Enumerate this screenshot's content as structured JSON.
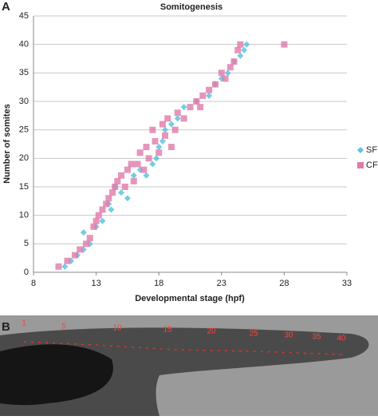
{
  "panel_labels": [
    "A",
    "B"
  ],
  "chart_data": {
    "type": "scatter",
    "title": "Somitogenesis",
    "x_label": "Developmental stage (hpf)",
    "y_label": "Number of somites",
    "xlim": [
      8,
      33
    ],
    "xticks": [
      8,
      13,
      18,
      23,
      28,
      33
    ],
    "ylim": [
      0,
      45
    ],
    "yticks": [
      0,
      5,
      10,
      15,
      20,
      25,
      30,
      35,
      40,
      45
    ],
    "grid": true,
    "legend": "right",
    "series": [
      {
        "name": "SF",
        "color": "#5ec3e0",
        "marker": "diamond",
        "x": [
          10.5,
          11,
          11.5,
          12,
          12,
          12.5,
          13,
          13.5,
          14,
          14.2,
          14.5,
          15,
          15.5,
          16,
          16.5,
          17,
          17.5,
          17.8,
          18,
          18.3,
          18.5,
          19,
          19.5,
          20,
          21,
          22,
          22.5,
          23,
          23.5,
          24,
          24.5,
          24.8,
          25
        ],
        "values": [
          1,
          2,
          3,
          4,
          7,
          5,
          8,
          9,
          12,
          11,
          15,
          14,
          13,
          17,
          18,
          17,
          19,
          20,
          22,
          23,
          25,
          26,
          27,
          29,
          30,
          31,
          33,
          34,
          35,
          37,
          38,
          39,
          40
        ]
      },
      {
        "name": "CF",
        "color": "#e07aa9",
        "marker": "square",
        "x": [
          10,
          10.7,
          11.3,
          11.7,
          12.2,
          12.5,
          12.8,
          13,
          13.2,
          13.5,
          13.8,
          14,
          14.3,
          14.5,
          14.7,
          15,
          15.3,
          15.5,
          15.8,
          16,
          16.3,
          16.5,
          16.8,
          17,
          17.2,
          17.5,
          17.7,
          18,
          18.3,
          18.5,
          18.7,
          19,
          19.3,
          19.5,
          20,
          20.5,
          21,
          21.3,
          21.5,
          22,
          22.5,
          23,
          23.3,
          23.7,
          24,
          24.3,
          24.5,
          28
        ],
        "values": [
          1,
          2,
          3,
          4,
          5,
          6,
          8,
          9,
          10,
          11,
          12,
          13,
          14,
          15,
          16,
          17,
          15,
          18,
          19,
          16,
          19,
          21,
          18,
          22,
          20,
          25,
          23,
          21,
          26,
          24,
          27,
          22,
          25,
          28,
          27,
          29,
          30,
          29,
          31,
          32,
          33,
          35,
          34,
          36,
          37,
          39,
          40,
          40
        ]
      }
    ]
  },
  "panel_b": {
    "somite_labels": [
      1,
      5,
      10,
      15,
      20,
      25,
      30,
      35,
      40
    ]
  }
}
